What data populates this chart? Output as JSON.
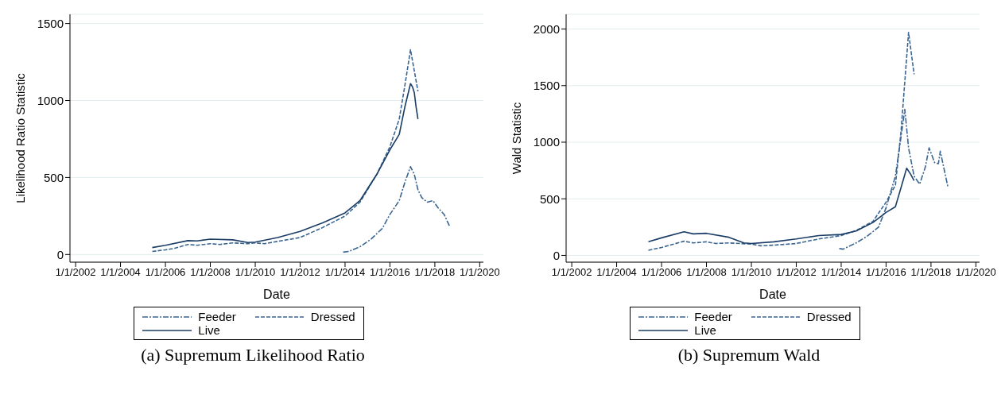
{
  "chart_data": [
    {
      "type": "line",
      "title": "(a) Supremum Likelihood Ratio",
      "xlabel": "Date",
      "ylabel": "Likelihood Ratio Statistic",
      "xlim": [
        "2001-10",
        "2020-03"
      ],
      "ylim": [
        -50,
        1560
      ],
      "xticks": [
        {
          "value": "2002-01-01",
          "label": "1/1/2002"
        },
        {
          "value": "2004-01-01",
          "label": "1/1/2004"
        },
        {
          "value": "2006-01-01",
          "label": "1/1/2006"
        },
        {
          "value": "2008-01-01",
          "label": "1/1/2008"
        },
        {
          "value": "2010-01-01",
          "label": "1/1/2010"
        },
        {
          "value": "2012-01-01",
          "label": "1/1/2012"
        },
        {
          "value": "2014-01-01",
          "label": "1/1/2014"
        },
        {
          "value": "2016-01-01",
          "label": "1/1/2016"
        },
        {
          "value": "2018-01-01",
          "label": "1/1/2018"
        },
        {
          "value": "2020-01-01",
          "label": "1/1/2020"
        }
      ],
      "yticks": [
        0,
        500,
        1000,
        1500
      ],
      "grid": "y",
      "legend": "bottom",
      "marker": "none",
      "series": [
        {
          "name": "Feeder",
          "color": "#3a6591",
          "line_style": "dashdot",
          "x": [
            "2013-12",
            "2014-03",
            "2014-09",
            "2015-03",
            "2015-09",
            "2016-01",
            "2016-06",
            "2016-09",
            "2016-12",
            "2017-02",
            "2017-04",
            "2017-06",
            "2017-09",
            "2017-12",
            "2018-03",
            "2018-06",
            "2018-09"
          ],
          "values": [
            15,
            20,
            50,
            100,
            170,
            260,
            350,
            470,
            570,
            520,
            420,
            370,
            340,
            350,
            300,
            260,
            180
          ]
        },
        {
          "name": "Dressed",
          "color": "#3a6591",
          "line_style": "dashed",
          "x": [
            "2005-06",
            "2006-01",
            "2006-06",
            "2007-01",
            "2007-06",
            "2008-01",
            "2008-06",
            "2009-01",
            "2009-09",
            "2010-01",
            "2010-06",
            "2011-01",
            "2012-01",
            "2013-01",
            "2014-01",
            "2014-09",
            "2015-06",
            "2016-01",
            "2016-06",
            "2016-09",
            "2016-12",
            "2017-04"
          ],
          "values": [
            20,
            30,
            40,
            65,
            60,
            70,
            65,
            75,
            70,
            75,
            70,
            85,
            110,
            175,
            250,
            340,
            520,
            700,
            880,
            1100,
            1330,
            1060
          ]
        },
        {
          "name": "Live",
          "color": "#1a3d66",
          "line_style": "solid",
          "x": [
            "2005-06",
            "2006-01",
            "2007-01",
            "2007-06",
            "2008-01",
            "2009-01",
            "2009-09",
            "2010-01",
            "2011-01",
            "2012-01",
            "2013-01",
            "2014-01",
            "2014-09",
            "2015-06",
            "2016-01",
            "2016-06",
            "2016-09",
            "2016-12",
            "2017-01",
            "2017-02",
            "2017-03",
            "2017-04"
          ],
          "values": [
            45,
            60,
            90,
            88,
            100,
            95,
            78,
            80,
            110,
            150,
            205,
            270,
            350,
            520,
            680,
            780,
            960,
            1110,
            1090,
            1050,
            960,
            880
          ]
        }
      ]
    },
    {
      "type": "line",
      "title": "(b) Supremum Wald",
      "xlabel": "Date",
      "ylabel": "Wald Statistic",
      "xlim": [
        "2001-10",
        "2020-03"
      ],
      "ylim": [
        -60,
        2130
      ],
      "xticks": [
        {
          "value": "2002-01-01",
          "label": "1/1/2002"
        },
        {
          "value": "2004-01-01",
          "label": "1/1/2004"
        },
        {
          "value": "2006-01-01",
          "label": "1/1/2006"
        },
        {
          "value": "2008-01-01",
          "label": "1/1/2008"
        },
        {
          "value": "2010-01-01",
          "label": "1/1/2010"
        },
        {
          "value": "2012-01-01",
          "label": "1/1/2012"
        },
        {
          "value": "2014-01-01",
          "label": "1/1/2014"
        },
        {
          "value": "2016-01-01",
          "label": "1/1/2016"
        },
        {
          "value": "2018-01-01",
          "label": "1/1/2018"
        },
        {
          "value": "2020-01-01",
          "label": "1/1/2020"
        }
      ],
      "yticks": [
        0,
        500,
        1000,
        1500,
        2000
      ],
      "grid": "y",
      "legend": "bottom",
      "marker": "none",
      "series": [
        {
          "name": "Feeder",
          "color": "#3a6591",
          "line_style": "dashdot",
          "x": [
            "2013-12",
            "2014-02",
            "2014-09",
            "2015-03",
            "2015-09",
            "2016-01",
            "2016-06",
            "2016-09",
            "2016-11",
            "2017-01",
            "2017-04",
            "2017-07",
            "2017-10",
            "2017-12",
            "2018-03",
            "2018-05",
            "2018-06",
            "2018-10"
          ],
          "values": [
            60,
            55,
            110,
            170,
            250,
            420,
            700,
            1050,
            1290,
            950,
            700,
            630,
            780,
            950,
            820,
            810,
            920,
            610
          ]
        },
        {
          "name": "Dressed",
          "color": "#3a6591",
          "line_style": "dashed",
          "x": [
            "2005-06",
            "2006-01",
            "2007-01",
            "2007-06",
            "2008-01",
            "2008-06",
            "2009-01",
            "2010-01",
            "2010-06",
            "2011-01",
            "2012-01",
            "2013-01",
            "2014-01",
            "2014-09",
            "2015-06",
            "2016-01",
            "2016-06",
            "2016-09",
            "2017-01",
            "2017-04"
          ],
          "values": [
            45,
            70,
            125,
            110,
            120,
            105,
            110,
            100,
            85,
            90,
            105,
            145,
            175,
            220,
            300,
            470,
            620,
            1100,
            1970,
            1600
          ]
        },
        {
          "name": "Live",
          "color": "#1a3d66",
          "line_style": "solid",
          "x": [
            "2005-06",
            "2006-01",
            "2007-01",
            "2007-06",
            "2008-01",
            "2009-01",
            "2009-09",
            "2010-01",
            "2011-01",
            "2012-01",
            "2013-01",
            "2014-01",
            "2014-09",
            "2015-06",
            "2016-01",
            "2016-06",
            "2016-09",
            "2016-12",
            "2017-02",
            "2017-04"
          ],
          "values": [
            120,
            155,
            209,
            190,
            195,
            160,
            110,
            105,
            120,
            145,
            175,
            185,
            215,
            290,
            380,
            430,
            600,
            770,
            720,
            660
          ]
        }
      ]
    }
  ]
}
